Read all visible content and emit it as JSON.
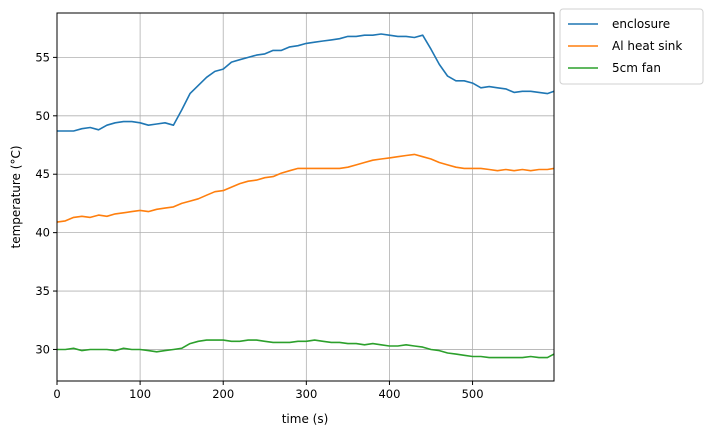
{
  "chart_data": {
    "type": "line",
    "title": "",
    "xlabel": "time (s)",
    "ylabel": "temperature (°C)",
    "xlim": [
      0,
      598
    ],
    "ylim": [
      27.3,
      58.8
    ],
    "xticks": [
      0,
      100,
      200,
      300,
      400,
      500
    ],
    "yticks": [
      30,
      35,
      40,
      45,
      50,
      55
    ],
    "grid": true,
    "legend_position": "outside-top-right",
    "x": [
      0,
      10,
      20,
      30,
      40,
      50,
      60,
      70,
      80,
      90,
      100,
      110,
      120,
      130,
      140,
      150,
      160,
      170,
      180,
      190,
      200,
      210,
      220,
      230,
      240,
      250,
      260,
      270,
      280,
      290,
      300,
      310,
      320,
      330,
      340,
      350,
      360,
      370,
      380,
      390,
      400,
      410,
      420,
      430,
      440,
      450,
      460,
      470,
      480,
      490,
      500,
      510,
      520,
      530,
      540,
      550,
      560,
      570,
      580,
      590,
      598
    ],
    "series": [
      {
        "name": "enclosure",
        "color": "#1f77b4",
        "values": [
          48.7,
          48.7,
          48.7,
          48.9,
          49.0,
          48.8,
          49.2,
          49.4,
          49.5,
          49.5,
          49.4,
          49.2,
          49.3,
          49.4,
          49.2,
          50.5,
          51.9,
          52.6,
          53.3,
          53.8,
          54.0,
          54.6,
          54.8,
          55.0,
          55.2,
          55.3,
          55.6,
          55.6,
          55.9,
          56.0,
          56.2,
          56.3,
          56.4,
          56.5,
          56.6,
          56.8,
          56.8,
          56.9,
          56.9,
          57.0,
          56.9,
          56.8,
          56.8,
          56.7,
          56.9,
          55.7,
          54.4,
          53.4,
          53.0,
          53.0,
          52.8,
          52.4,
          52.5,
          52.4,
          52.3,
          52.0,
          52.1,
          52.1,
          52.0,
          51.9,
          52.1
        ]
      },
      {
        "name": "Al heat sink",
        "color": "#ff7f0e",
        "values": [
          40.9,
          41.0,
          41.3,
          41.4,
          41.3,
          41.5,
          41.4,
          41.6,
          41.7,
          41.8,
          41.9,
          41.8,
          42.0,
          42.1,
          42.2,
          42.5,
          42.7,
          42.9,
          43.2,
          43.5,
          43.6,
          43.9,
          44.2,
          44.4,
          44.5,
          44.7,
          44.8,
          45.1,
          45.3,
          45.5,
          45.5,
          45.5,
          45.5,
          45.5,
          45.5,
          45.6,
          45.8,
          46.0,
          46.2,
          46.3,
          46.4,
          46.5,
          46.6,
          46.7,
          46.5,
          46.3,
          46.0,
          45.8,
          45.6,
          45.5,
          45.5,
          45.5,
          45.4,
          45.3,
          45.4,
          45.3,
          45.4,
          45.3,
          45.4,
          45.4,
          45.5
        ]
      },
      {
        "name": "5cm fan",
        "color": "#2ca02c",
        "values": [
          30.0,
          30.0,
          30.1,
          29.9,
          30.0,
          30.0,
          30.0,
          29.9,
          30.1,
          30.0,
          30.0,
          29.9,
          29.8,
          29.9,
          30.0,
          30.1,
          30.5,
          30.7,
          30.8,
          30.8,
          30.8,
          30.7,
          30.7,
          30.8,
          30.8,
          30.7,
          30.6,
          30.6,
          30.6,
          30.7,
          30.7,
          30.8,
          30.7,
          30.6,
          30.6,
          30.5,
          30.5,
          30.4,
          30.5,
          30.4,
          30.3,
          30.3,
          30.4,
          30.3,
          30.2,
          30.0,
          29.9,
          29.7,
          29.6,
          29.5,
          29.4,
          29.4,
          29.3,
          29.3,
          29.3,
          29.3,
          29.3,
          29.4,
          29.3,
          29.3,
          29.6
        ]
      }
    ]
  }
}
